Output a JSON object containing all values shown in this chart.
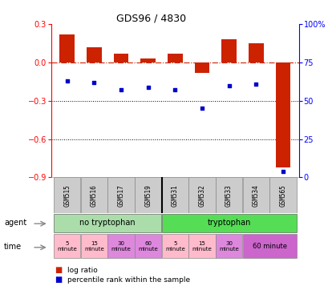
{
  "title": "GDS96 / 4830",
  "samples": [
    "GSM515",
    "GSM516",
    "GSM517",
    "GSM519",
    "GSM531",
    "GSM532",
    "GSM533",
    "GSM534",
    "GSM565"
  ],
  "log_ratio": [
    0.22,
    0.12,
    0.07,
    0.03,
    0.07,
    -0.08,
    0.18,
    0.15,
    -0.82
  ],
  "percentile_rank": [
    63,
    62,
    57,
    59,
    57,
    45,
    60,
    61,
    4
  ],
  "ylim_left": [
    -0.9,
    0.3
  ],
  "ylim_right": [
    0,
    100
  ],
  "yticks_left": [
    0.3,
    0.0,
    -0.3,
    -0.6,
    -0.9
  ],
  "yticks_right": [
    100,
    75,
    50,
    25,
    0
  ],
  "bar_color": "#CC2200",
  "dot_color": "#0000CC",
  "background_color": "#ffffff",
  "gsm_bg": "#cccccc",
  "agent_no_tryp_color": "#99DD99",
  "agent_tryp_color": "#66DD66",
  "time_pink": "#FFAACC",
  "time_purple": "#DD88DD",
  "time_last_purple": "#CC66CC"
}
